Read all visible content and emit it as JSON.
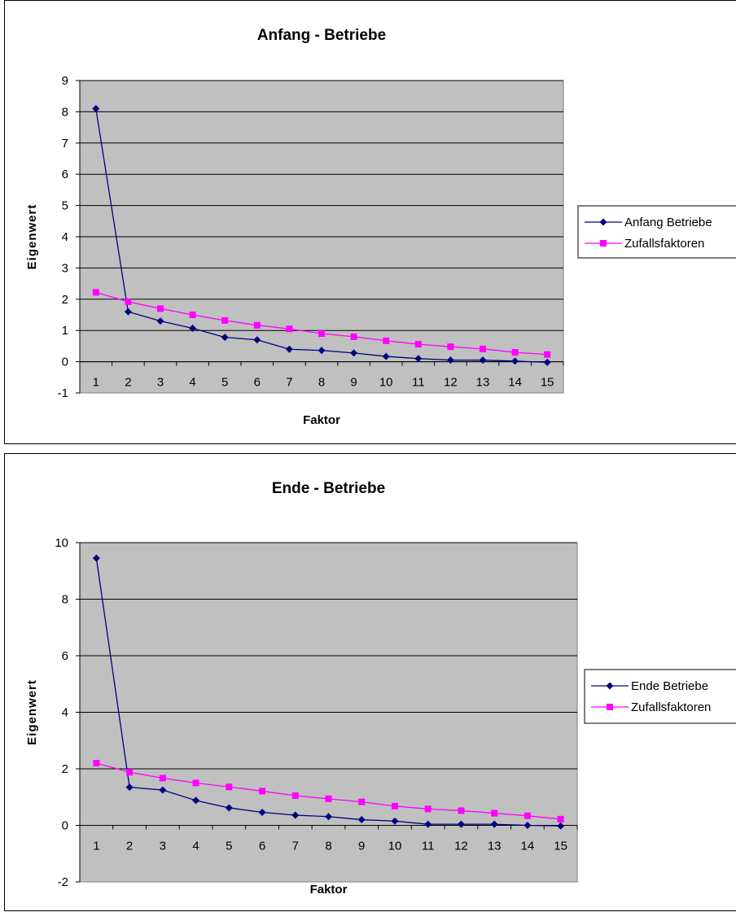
{
  "colors": {
    "plot_bg": "#c0c0c0",
    "series_primary": "#000080",
    "series_random": "#ff00ff",
    "grid": "#000000"
  },
  "chart_data": [
    {
      "type": "line",
      "title": "Anfang - Betriebe",
      "xlabel": "Faktor",
      "ylabel": "Eigenwert",
      "x": [
        1,
        2,
        3,
        4,
        5,
        6,
        7,
        8,
        9,
        10,
        11,
        12,
        13,
        14,
        15
      ],
      "ylim": [
        -1,
        9
      ],
      "yticks": [
        -1,
        0,
        1,
        2,
        3,
        4,
        5,
        6,
        7,
        8,
        9
      ],
      "grid": true,
      "legend_position": "right",
      "series": [
        {
          "name": "Anfang Betriebe",
          "marker": "diamond",
          "color": "#000080",
          "values": [
            8.1,
            1.6,
            1.3,
            1.07,
            0.78,
            0.7,
            0.4,
            0.36,
            0.28,
            0.17,
            0.1,
            0.05,
            0.05,
            0.02,
            -0.02
          ]
        },
        {
          "name": "Zufallsfaktoren",
          "marker": "square",
          "color": "#ff00ff",
          "values": [
            2.22,
            1.92,
            1.7,
            1.5,
            1.32,
            1.17,
            1.05,
            0.9,
            0.8,
            0.67,
            0.56,
            0.48,
            0.41,
            0.3,
            0.23
          ]
        }
      ]
    },
    {
      "type": "line",
      "title": "Ende - Betriebe",
      "xlabel": "Faktor",
      "ylabel": "Eigenwert",
      "x": [
        1,
        2,
        3,
        4,
        5,
        6,
        7,
        8,
        9,
        10,
        11,
        12,
        13,
        14,
        15
      ],
      "ylim": [
        -2,
        10
      ],
      "yticks": [
        -2,
        0,
        2,
        4,
        6,
        8,
        10
      ],
      "grid": true,
      "legend_position": "right",
      "series": [
        {
          "name": "Ende Betriebe",
          "marker": "diamond",
          "color": "#000080",
          "values": [
            9.45,
            1.35,
            1.25,
            0.88,
            0.62,
            0.46,
            0.36,
            0.31,
            0.2,
            0.15,
            0.04,
            0.04,
            0.04,
            0.0,
            -0.02
          ]
        },
        {
          "name": "Zufallsfaktoren",
          "marker": "square",
          "color": "#ff00ff",
          "values": [
            2.2,
            1.88,
            1.67,
            1.5,
            1.36,
            1.21,
            1.05,
            0.94,
            0.83,
            0.68,
            0.58,
            0.52,
            0.43,
            0.34,
            0.22
          ]
        }
      ]
    }
  ]
}
